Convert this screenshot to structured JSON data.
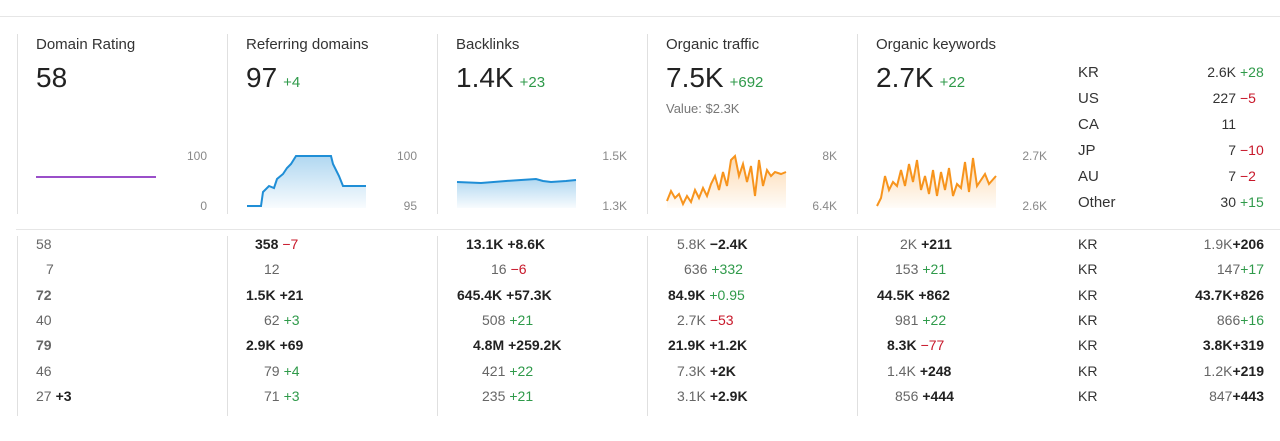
{
  "cards": [
    {
      "title": "Domain Rating",
      "value": "58",
      "delta": "",
      "axis": [
        "100",
        "0"
      ]
    },
    {
      "title": "Referring domains",
      "value": "97",
      "delta": "+4",
      "axis": [
        "100",
        "95"
      ]
    },
    {
      "title": "Backlinks",
      "value": "1.4K",
      "delta": "+23",
      "axis": [
        "1.5K",
        "1.3K"
      ]
    },
    {
      "title": "Organic traffic",
      "value": "7.5K",
      "delta": "+692",
      "sub": "Value: $2.3K",
      "axis": [
        "8K",
        "6.4K"
      ]
    },
    {
      "title": "Organic keywords",
      "value": "2.7K",
      "delta": "+22",
      "axis": [
        "2.7K",
        "2.6K"
      ]
    }
  ],
  "countries": [
    {
      "code": "KR",
      "value": "2.6K",
      "delta": "+28"
    },
    {
      "code": "US",
      "value": "227",
      "delta": "−5"
    },
    {
      "code": "CA",
      "value": "11",
      "delta": ""
    },
    {
      "code": "JP",
      "value": "7",
      "delta": "−10"
    },
    {
      "code": "AU",
      "value": "7",
      "delta": "−2"
    },
    {
      "code": "Other",
      "value": "30",
      "delta": "+15"
    }
  ],
  "table": {
    "dr": [
      {
        "v": "58",
        "d": ""
      },
      {
        "v": "7",
        "d": ""
      },
      {
        "v": "72",
        "d": ""
      },
      {
        "v": "40",
        "d": ""
      },
      {
        "v": "79",
        "d": ""
      },
      {
        "v": "46",
        "d": ""
      },
      {
        "v": "27",
        "d": "+3"
      }
    ],
    "ref": [
      {
        "v": "358",
        "d": "−7"
      },
      {
        "v": "12",
        "d": ""
      },
      {
        "v": "1.5K",
        "d": "+21"
      },
      {
        "v": "62",
        "d": "+3"
      },
      {
        "v": "2.9K",
        "d": "+69"
      },
      {
        "v": "79",
        "d": "+4"
      },
      {
        "v": "71",
        "d": "+3"
      }
    ],
    "bl": [
      {
        "v": "13.1K",
        "d": "+8.6K"
      },
      {
        "v": "16",
        "d": "−6"
      },
      {
        "v": "645.4K",
        "d": "+57.3K"
      },
      {
        "v": "508",
        "d": "+21"
      },
      {
        "v": "4.8M",
        "d": "+259.2K"
      },
      {
        "v": "421",
        "d": "+22"
      },
      {
        "v": "235",
        "d": "+21"
      }
    ],
    "ot": [
      {
        "v": "5.8K",
        "d": "−2.4K"
      },
      {
        "v": "636",
        "d": "+332"
      },
      {
        "v": "84.9K",
        "d": "+0.95"
      },
      {
        "v": "2.7K",
        "d": "−53"
      },
      {
        "v": "21.9K",
        "d": "+1.2K"
      },
      {
        "v": "7.3K",
        "d": "+2K"
      },
      {
        "v": "3.1K",
        "d": "+2.9K"
      }
    ],
    "ok": [
      {
        "v": "2K",
        "d": "+211"
      },
      {
        "v": "153",
        "d": "+21"
      },
      {
        "v": "44.5K",
        "d": "+862"
      },
      {
        "v": "981",
        "d": "+22"
      },
      {
        "v": "8.3K",
        "d": "−77"
      },
      {
        "v": "1.4K",
        "d": "+248"
      },
      {
        "v": "856",
        "d": "+444"
      }
    ],
    "kr": [
      {
        "c": "KR",
        "v": "1.9K",
        "d": "+206"
      },
      {
        "c": "KR",
        "v": "147",
        "d": "+17"
      },
      {
        "c": "KR",
        "v": "43.7K",
        "d": "+826"
      },
      {
        "c": "KR",
        "v": "866",
        "d": "+16"
      },
      {
        "c": "KR",
        "v": "3.8K",
        "d": "+319"
      },
      {
        "c": "KR",
        "v": "1.2K",
        "d": "+219"
      },
      {
        "c": "KR",
        "v": "847",
        "d": "+443"
      }
    ]
  },
  "colors": {
    "positive": "#2f9a4a",
    "negative": "#c8182a",
    "dr": "#9a4fc9",
    "blue": "#1f8ed6",
    "orange": "#f7941d"
  }
}
